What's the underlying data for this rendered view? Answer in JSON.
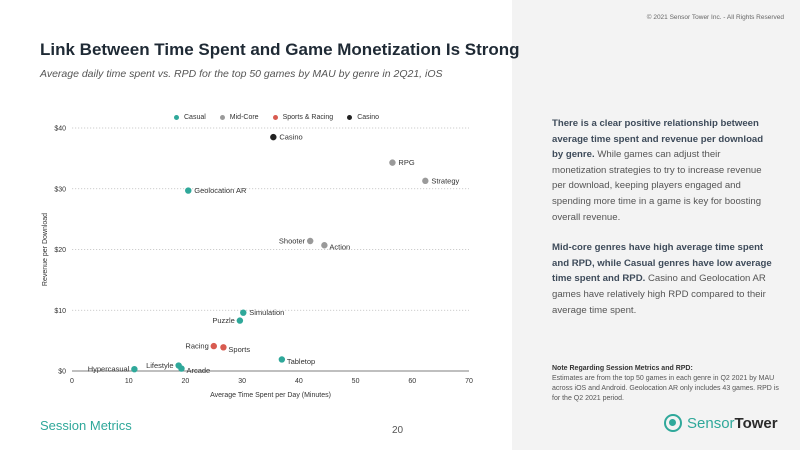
{
  "header": {
    "title": "Link Between Time Spent and Game Monetization Is Strong",
    "subtitle": "Average daily time spent vs. RPD for the top 50 games by MAU by genre in 2Q21, iOS"
  },
  "colors": {
    "casual": "#2fa89a",
    "midcore": "#9a9a9a",
    "sports_racing": "#d85b50",
    "casino": "#222222",
    "accent": "#2fa89a"
  },
  "chart_data": {
    "type": "scatter",
    "xlabel": "Average Time Spent per Day (Minutes)",
    "ylabel": "Revenue per Download",
    "xlim": [
      0,
      70
    ],
    "ylim": [
      0,
      40
    ],
    "x_ticks": [
      "0",
      "10",
      "20",
      "30",
      "40",
      "50",
      "60",
      "70"
    ],
    "y_ticks": [
      "$0",
      "$10",
      "$20",
      "$30",
      "$40"
    ],
    "grid": "horizontal dotted",
    "legend": "top",
    "series": [
      {
        "name": "Casual",
        "color": "#2fa89a",
        "points": [
          {
            "label": "Hypercasual",
            "x": 11,
            "y": 0.3
          },
          {
            "label": "Lifestyle",
            "x": 18.8,
            "y": 0.9
          },
          {
            "label": "Arcade",
            "x": 19.3,
            "y": 0.4
          },
          {
            "label": "Geolocation AR",
            "x": 20.5,
            "y": 29.7
          },
          {
            "label": "Puzzle",
            "x": 29.6,
            "y": 8.3
          },
          {
            "label": "Simulation",
            "x": 30.2,
            "y": 9.6
          },
          {
            "label": "Tabletop",
            "x": 37,
            "y": 1.9
          }
        ]
      },
      {
        "name": "Mid-Core",
        "color": "#9a9a9a",
        "points": [
          {
            "label": "Shooter",
            "x": 42,
            "y": 21.4
          },
          {
            "label": "Action",
            "x": 44.5,
            "y": 20.7
          },
          {
            "label": "RPG",
            "x": 56.5,
            "y": 34.3
          },
          {
            "label": "Strategy",
            "x": 62.3,
            "y": 31.3
          }
        ]
      },
      {
        "name": "Sports & Racing",
        "color": "#d85b50",
        "points": [
          {
            "label": "Racing",
            "x": 25,
            "y": 4.1
          },
          {
            "label": "Sports",
            "x": 26.7,
            "y": 3.9
          }
        ]
      },
      {
        "name": "Casino",
        "color": "#222222",
        "points": [
          {
            "label": "Casino",
            "x": 35.5,
            "y": 38.5
          }
        ]
      }
    ]
  },
  "side": {
    "copyright": "© 2021 Sensor Tower Inc. - All Rights Reserved",
    "p1_bold": "There is a clear positive relationship between average time spent and revenue per download by genre.",
    "p1_rest": " While games can adjust their monetization strategies to try to increase revenue per download, keeping players engaged and spending more time in a game is key for boosting overall revenue.",
    "p2_bold": "Mid-core genres have high average time spent and RPD, while Casual genres have low average time spent and RPD.",
    "p2_rest": " Casino and Geolocation AR games have relatively high RPD compared to their average time spent.",
    "note_title": "Note Regarding Session Metrics and RPD:",
    "note_body": "Estimates are from the top 50 games in each genre in Q2 2021 by MAU across iOS and Android. Geolocation AR only includes 43 games. RPD is for the Q2 2021 period."
  },
  "footer": {
    "section": "Session Metrics",
    "page": "20",
    "logo_light": "Sensor",
    "logo_bold": "Tower"
  }
}
